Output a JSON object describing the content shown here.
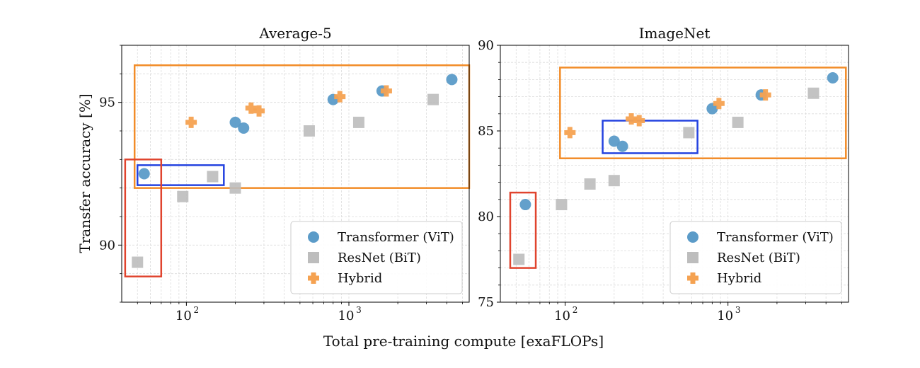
{
  "figure": {
    "xlabel": "Total pre-training compute [exaFLOPs]",
    "ylabel": "Transfer accuracy [%]"
  },
  "legend_entries": [
    {
      "name": "Transformer (ViT)",
      "marker": "circle",
      "color": "#5b9bc8"
    },
    {
      "name": "ResNet (BiT)",
      "marker": "square",
      "color": "#bdbdbd"
    },
    {
      "name": "Hybrid",
      "marker": "plus",
      "color": "#f5a251"
    }
  ],
  "chart_data": [
    {
      "type": "scatter",
      "title": "Average-5",
      "xlabel": "Total pre-training compute [exaFLOPs]",
      "ylabel": "Transfer accuracy [%]",
      "xscale": "log",
      "xlim": [
        40,
        5500
      ],
      "ylim": [
        88,
        97
      ],
      "yticks": [
        90,
        95
      ],
      "xticks": [
        100,
        1000
      ],
      "xtick_labels": [
        "10",
        "10"
      ],
      "xtick_exps": [
        "2",
        "3"
      ],
      "grid": true,
      "legend_position": "lower-right",
      "series": [
        {
          "name": "Transformer (ViT)",
          "marker": "circle",
          "color": "#5b9bc8",
          "x": [
            55,
            200,
            225,
            800,
            1600,
            4300
          ],
          "y": [
            92.5,
            94.3,
            94.1,
            95.1,
            95.4,
            95.8
          ]
        },
        {
          "name": "ResNet (BiT)",
          "marker": "square",
          "color": "#bdbdbd",
          "x": [
            50,
            95,
            145,
            200,
            570,
            1150,
            3300
          ],
          "y": [
            89.4,
            91.7,
            92.4,
            92.0,
            94.0,
            94.3,
            95.1
          ]
        },
        {
          "name": "Hybrid",
          "marker": "plus",
          "color": "#f5a251",
          "x": [
            107,
            250,
            280,
            880,
            1700
          ],
          "y": [
            94.3,
            94.8,
            94.7,
            95.2,
            95.4
          ]
        }
      ],
      "highlight_boxes": [
        {
          "color": "#f28c28",
          "x": [
            48,
            5500
          ],
          "y": [
            92.0,
            96.3
          ]
        },
        {
          "color": "#2442e0",
          "x": [
            50,
            170
          ],
          "y": [
            92.1,
            92.8
          ]
        },
        {
          "color": "#e0442e",
          "x": [
            42,
            70
          ],
          "y": [
            88.9,
            93.0
          ]
        }
      ]
    },
    {
      "type": "scatter",
      "title": "ImageNet",
      "xscale": "log",
      "xlim": [
        40,
        5500
      ],
      "ylim": [
        75,
        90
      ],
      "yticks": [
        75,
        80,
        85,
        90
      ],
      "xticks": [
        100,
        1000
      ],
      "xtick_labels": [
        "10",
        "10"
      ],
      "xtick_exps": [
        "2",
        "3"
      ],
      "grid": true,
      "legend_position": "lower-right",
      "series": [
        {
          "name": "Transformer (ViT)",
          "marker": "circle",
          "color": "#5b9bc8",
          "x": [
            57,
            200,
            225,
            800,
            1600,
            4400
          ],
          "y": [
            80.7,
            84.4,
            84.1,
            86.3,
            87.1,
            88.1
          ]
        },
        {
          "name": "ResNet (BiT)",
          "marker": "square",
          "color": "#bdbdbd",
          "x": [
            52,
            95,
            142,
            200,
            575,
            1150,
            3350
          ],
          "y": [
            77.5,
            80.7,
            81.9,
            82.1,
            84.9,
            85.5,
            87.2
          ]
        },
        {
          "name": "Hybrid",
          "marker": "plus",
          "color": "#f5a251",
          "x": [
            107,
            255,
            285,
            880,
            1700
          ],
          "y": [
            84.9,
            85.7,
            85.6,
            86.6,
            87.1
          ]
        }
      ],
      "highlight_boxes": [
        {
          "color": "#f28c28",
          "x": [
            93,
            5300
          ],
          "y": [
            83.4,
            88.7
          ]
        },
        {
          "color": "#2442e0",
          "x": [
            170,
            650
          ],
          "y": [
            83.7,
            85.6
          ]
        },
        {
          "color": "#e0442e",
          "x": [
            46,
            66
          ],
          "y": [
            77.0,
            81.4
          ]
        }
      ]
    }
  ]
}
